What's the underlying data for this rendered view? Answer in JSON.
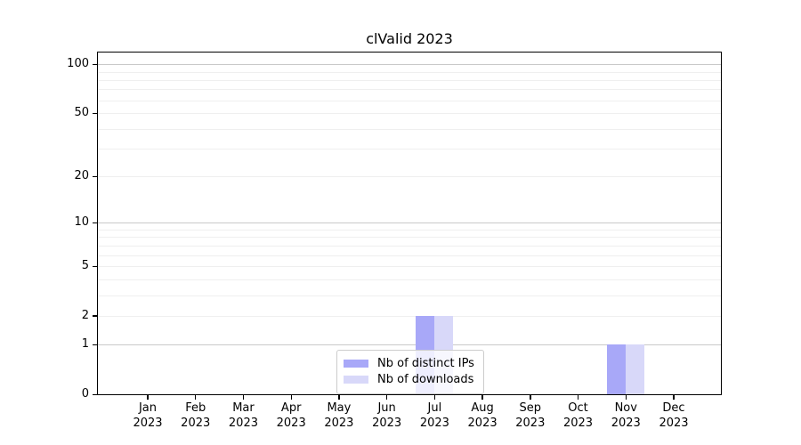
{
  "title": "clValid 2023",
  "chart_data": {
    "type": "bar",
    "title": "clValid 2023",
    "categories": [
      "Jan 2023",
      "Feb 2023",
      "Mar 2023",
      "Apr 2023",
      "May 2023",
      "Jun 2023",
      "Jul 2023",
      "Aug 2023",
      "Sep 2023",
      "Oct 2023",
      "Nov 2023",
      "Dec 2023"
    ],
    "series": [
      {
        "name": "Nb of distinct IPs",
        "color": "#a8a8f8",
        "values": [
          0,
          0,
          0,
          0,
          0,
          0,
          2,
          0,
          0,
          0,
          1,
          0
        ]
      },
      {
        "name": "Nb of downloads",
        "color": "#d8d8f9",
        "values": [
          0,
          0,
          0,
          0,
          0,
          0,
          2,
          0,
          0,
          0,
          1,
          0
        ]
      }
    ],
    "xlabel": "",
    "ylabel": "",
    "yscale": "log1p",
    "ylim": [
      0,
      118
    ],
    "y_ticks": [
      0,
      1,
      2,
      5,
      10,
      20,
      50,
      100
    ],
    "y_minor_gridlines": [
      2,
      3,
      4,
      5,
      6,
      7,
      8,
      9,
      20,
      30,
      40,
      50,
      60,
      70,
      80,
      90
    ],
    "y_major_gridlines": [
      1,
      10,
      100
    ],
    "grid": "horizontal",
    "legend_position": "lower center"
  },
  "legend": {
    "items": [
      {
        "label": "Nb of distinct IPs",
        "color": "#a8a8f8"
      },
      {
        "label": "Nb of downloads",
        "color": "#d8d8f9"
      }
    ]
  }
}
